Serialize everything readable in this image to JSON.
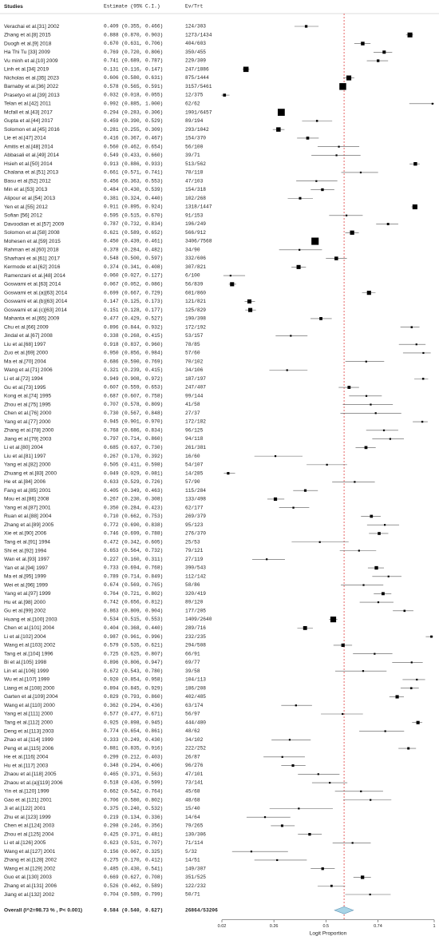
{
  "chart_data": {
    "type": "forest",
    "headers": [
      "Studies",
      "Estimate (95% C.I.)",
      "Ev/Trt"
    ],
    "xlabel": "Logit Proportion",
    "xlim": [
      0.02,
      1
    ],
    "xticks": [
      0.02,
      0.26,
      0.5,
      0.74,
      1
    ],
    "color": "#000000",
    "reference_color": "#e04040",
    "diamond_color": "#a8d4e6",
    "rows": [
      {
        "study": "Verachai et al.[31] 2002",
        "text": "0.409 (0.355, 0.466)",
        "est": 0.409,
        "lo": 0.355,
        "hi": 0.466,
        "n": "124/303"
      },
      {
        "study": "Zhang et al.[8] 2015",
        "text": "0.888 (0.870, 0.903)",
        "est": 0.888,
        "lo": 0.87,
        "hi": 0.903,
        "n": "1273/1434"
      },
      {
        "study": "Duogh et al.[9] 2018",
        "text": "0.670 (0.631, 0.706)",
        "est": 0.67,
        "lo": 0.631,
        "hi": 0.706,
        "n": "404/603"
      },
      {
        "study": "Ha Thi Tu [33] 2009",
        "text": "0.769 (0.720, 0.806)",
        "est": 0.769,
        "lo": 0.72,
        "hi": 0.806,
        "n": "350/455"
      },
      {
        "study": "Vu minh et al.[10] 2009",
        "text": "0.741 (0.689, 0.787)",
        "est": 0.741,
        "lo": 0.689,
        "hi": 0.787,
        "n": "229/309"
      },
      {
        "study": "Linh et al.[34] 2019",
        "text": "0.131 (0.116, 0.147)",
        "est": 0.131,
        "lo": 0.116,
        "hi": 0.147,
        "n": "247/1886"
      },
      {
        "study": "Nicholas et al.[35] 2023",
        "text": "0.606 (0.580, 0.631)",
        "est": 0.606,
        "lo": 0.58,
        "hi": 0.631,
        "n": "875/1444"
      },
      {
        "study": "Barnaby et al.[36] 2022",
        "text": "0.578 (0.565, 0.591)",
        "est": 0.578,
        "lo": 0.565,
        "hi": 0.591,
        "n": "3157/5461"
      },
      {
        "study": "Prasetyo et al.[39] 2013",
        "text": "0.032 (0.018, 0.055)",
        "est": 0.032,
        "lo": 0.018,
        "hi": 0.055,
        "n": "12/375"
      },
      {
        "study": "Telan et al.[42] 2011",
        "text": "0.992 (0.885, 1.000)",
        "est": 0.992,
        "lo": 0.885,
        "hi": 1.0,
        "n": "62/62"
      },
      {
        "study": "Mcfall et al.[43] 2017",
        "text": "0.294 (0.283, 0.306)",
        "est": 0.294,
        "lo": 0.283,
        "hi": 0.306,
        "n": "1901/6457"
      },
      {
        "study": "Gupta et al.[44] 2017",
        "text": "0.459 (0.390, 0.529)",
        "est": 0.459,
        "lo": 0.39,
        "hi": 0.529,
        "n": "89/194"
      },
      {
        "study": "Solomon et al.[45] 2016",
        "text": "0.281 (0.255, 0.309)",
        "est": 0.281,
        "lo": 0.255,
        "hi": 0.309,
        "n": "293/1042"
      },
      {
        "study": "Lie et al.[47] 2014",
        "text": "0.416 (0.367, 0.467)",
        "est": 0.416,
        "lo": 0.367,
        "hi": 0.467,
        "n": "154/370"
      },
      {
        "study": "Amitis et al.[48] 2014",
        "text": "0.560 (0.462, 0.654)",
        "est": 0.56,
        "lo": 0.462,
        "hi": 0.654,
        "n": "56/100"
      },
      {
        "study": "Abbasali et al.[49] 2014",
        "text": "0.549 (0.433, 0.660)",
        "est": 0.549,
        "lo": 0.433,
        "hi": 0.66,
        "n": "39/71"
      },
      {
        "study": "Hsieh et al.[50] 2014",
        "text": "0.913 (0.886, 0.933)",
        "est": 0.913,
        "lo": 0.886,
        "hi": 0.933,
        "n": "513/562"
      },
      {
        "study": "Chalana et al.[51] 2013",
        "text": "0.661 (0.571, 0.741)",
        "est": 0.661,
        "lo": 0.571,
        "hi": 0.741,
        "n": "78/118"
      },
      {
        "study": "Basu et al.[52] 2012",
        "text": "0.456 (0.363, 0.553)",
        "est": 0.456,
        "lo": 0.363,
        "hi": 0.553,
        "n": "47/103"
      },
      {
        "study": "Min et al.[53] 2013",
        "text": "0.484 (0.430, 0.539)",
        "est": 0.484,
        "lo": 0.43,
        "hi": 0.539,
        "n": "154/318"
      },
      {
        "study": "Alipour et al.[54] 2013",
        "text": "0.381 (0.324, 0.440)",
        "est": 0.381,
        "lo": 0.324,
        "hi": 0.44,
        "n": "102/268"
      },
      {
        "study": "Yen et al.[55] 2012",
        "text": "0.911 (0.895, 0.924)",
        "est": 0.911,
        "lo": 0.895,
        "hi": 0.924,
        "n": "1318/1447"
      },
      {
        "study": "Sofian [56] 2012",
        "text": "0.595 (0.515, 0.670)",
        "est": 0.595,
        "lo": 0.515,
        "hi": 0.67,
        "n": "91/153"
      },
      {
        "study": "Davoodian et al.[57] 2009",
        "text": "0.787 (0.732, 0.834)",
        "est": 0.787,
        "lo": 0.732,
        "hi": 0.834,
        "n": "196/249"
      },
      {
        "study": "Solomon et al.[58] 2008",
        "text": "0.621 (0.589, 0.652)",
        "est": 0.621,
        "lo": 0.589,
        "hi": 0.652,
        "n": "566/912"
      },
      {
        "study": "Mohesen et al.[59] 2015",
        "text": "0.450 (0.439, 0.461)",
        "est": 0.45,
        "lo": 0.439,
        "hi": 0.461,
        "n": "3406/7568"
      },
      {
        "study": "Rahman et al.[60] 2018",
        "text": "0.378 (0.284, 0.482)",
        "est": 0.378,
        "lo": 0.284,
        "hi": 0.482,
        "n": "34/90"
      },
      {
        "study": "Sharhani et al.[61] 2017",
        "text": "0.548 (0.500, 0.597)",
        "est": 0.548,
        "lo": 0.5,
        "hi": 0.597,
        "n": "332/606"
      },
      {
        "study": "Kermode et al.[62] 2016",
        "text": "0.374 (0.341, 0.408)",
        "est": 0.374,
        "lo": 0.341,
        "hi": 0.408,
        "n": "307/821"
      },
      {
        "study": "Ramenzani et al.[48] 2014",
        "text": "0.060 (0.027, 0.127)",
        "est": 0.06,
        "lo": 0.027,
        "hi": 0.127,
        "n": "6/100"
      },
      {
        "study": "Goswami et al.[63] 2014",
        "text": "0.067 (0.052, 0.086)",
        "est": 0.067,
        "lo": 0.052,
        "hi": 0.086,
        "n": "56/839"
      },
      {
        "study": "Goswami et al.(a)[63] 2014",
        "text": "0.699 (0.667, 0.729)",
        "est": 0.699,
        "lo": 0.667,
        "hi": 0.729,
        "n": "601/860"
      },
      {
        "study": "Goswami et al.(b)[63] 2014",
        "text": "0.147 (0.125, 0.173)",
        "est": 0.147,
        "lo": 0.125,
        "hi": 0.173,
        "n": "121/821"
      },
      {
        "study": "Goswami et al.(c)[63] 2014",
        "text": "0.151 (0.128, 0.177)",
        "est": 0.151,
        "lo": 0.128,
        "hi": 0.177,
        "n": "125/829"
      },
      {
        "study": "Mahanta et al.[65] 2009",
        "text": "0.477 (0.429, 0.527)",
        "est": 0.477,
        "lo": 0.429,
        "hi": 0.527,
        "n": "190/398"
      },
      {
        "study": "Chu et al.[66] 2009",
        "text": "0.896 (0.844, 0.932)",
        "est": 0.896,
        "lo": 0.844,
        "hi": 0.932,
        "n": "172/192"
      },
      {
        "study": "Jindal et al.[67] 2008",
        "text": "0.338 (0.268, 0.415)",
        "est": 0.338,
        "lo": 0.268,
        "hi": 0.415,
        "n": "53/157"
      },
      {
        "study": "Liu et al.[68] 1997",
        "text": "0.918 (0.837, 0.960)",
        "est": 0.918,
        "lo": 0.837,
        "hi": 0.96,
        "n": "78/85"
      },
      {
        "study": "Zuo et al.[69] 2000",
        "text": "0.950 (0.856, 0.984)",
        "est": 0.95,
        "lo": 0.856,
        "hi": 0.984,
        "n": "57/60"
      },
      {
        "study": "Ma et al.[70] 2004",
        "text": "0.686 (0.590, 0.769)",
        "est": 0.686,
        "lo": 0.59,
        "hi": 0.769,
        "n": "70/102"
      },
      {
        "study": "Wang et al.[71] 2006",
        "text": "0.321 (0.239, 0.415)",
        "est": 0.321,
        "lo": 0.239,
        "hi": 0.415,
        "n": "34/106"
      },
      {
        "study": "Li et al.[72] 1994",
        "text": "0.949 (0.908, 0.972)",
        "est": 0.949,
        "lo": 0.908,
        "hi": 0.972,
        "n": "187/197"
      },
      {
        "study": "Gu et al.[73] 1995",
        "text": "0.607 (0.559, 0.653)",
        "est": 0.607,
        "lo": 0.559,
        "hi": 0.653,
        "n": "247/407"
      },
      {
        "study": "Kong et al.[74] 1995",
        "text": "0.687 (0.607, 0.758)",
        "est": 0.687,
        "lo": 0.607,
        "hi": 0.758,
        "n": "99/144"
      },
      {
        "study": "Zhou et al.[75] 1995",
        "text": "0.707 (0.578, 0.809)",
        "est": 0.707,
        "lo": 0.578,
        "hi": 0.809,
        "n": "41/58"
      },
      {
        "study": "Chen et al.[76] 2000",
        "text": "0.730 (0.567, 0.848)",
        "est": 0.73,
        "lo": 0.567,
        "hi": 0.848,
        "n": "27/37"
      },
      {
        "study": "Yang et al.[77] 2000",
        "text": "0.945 (0.901, 0.970)",
        "est": 0.945,
        "lo": 0.901,
        "hi": 0.97,
        "n": "172/182"
      },
      {
        "study": "Zhang et al.[78] 2000",
        "text": "0.768 (0.686, 0.834)",
        "est": 0.768,
        "lo": 0.686,
        "hi": 0.834,
        "n": "96/125"
      },
      {
        "study": "Jiang et al.[79] 2003",
        "text": "0.797 (0.714, 0.860)",
        "est": 0.797,
        "lo": 0.714,
        "hi": 0.86,
        "n": "94/118"
      },
      {
        "study": "Li et al.[80] 2004",
        "text": "0.685 (0.637, 0.730)",
        "est": 0.685,
        "lo": 0.637,
        "hi": 0.73,
        "n": "261/381"
      },
      {
        "study": "Liu et al.[81] 1997",
        "text": "0.267 (0.170, 0.392)",
        "est": 0.267,
        "lo": 0.17,
        "hi": 0.392,
        "n": "16/60"
      },
      {
        "study": "Yang et al.[82] 2000",
        "text": "0.505 (0.411, 0.598)",
        "est": 0.505,
        "lo": 0.411,
        "hi": 0.598,
        "n": "54/107"
      },
      {
        "study": "Zhuang et al.[83] 2000",
        "text": "0.049 (0.029, 0.081)",
        "est": 0.049,
        "lo": 0.029,
        "hi": 0.081,
        "n": "14/285"
      },
      {
        "study": "He et al.[84] 2006",
        "text": "0.633 (0.529, 0.726)",
        "est": 0.633,
        "lo": 0.529,
        "hi": 0.726,
        "n": "57/90"
      },
      {
        "study": "Fang et al.[85] 2001",
        "text": "0.405 (0.349, 0.463)",
        "est": 0.405,
        "lo": 0.349,
        "hi": 0.463,
        "n": "115/284"
      },
      {
        "study": "Mou et al.[86] 2008",
        "text": "0.267 (0.230, 0.308)",
        "est": 0.267,
        "lo": 0.23,
        "hi": 0.308,
        "n": "133/498"
      },
      {
        "study": "Yang et al.[87] 2001",
        "text": "0.350 (0.284, 0.423)",
        "est": 0.35,
        "lo": 0.284,
        "hi": 0.423,
        "n": "62/177"
      },
      {
        "study": "Ruan et al.[88] 2004",
        "text": "0.710 (0.662, 0.753)",
        "est": 0.71,
        "lo": 0.662,
        "hi": 0.753,
        "n": "269/379"
      },
      {
        "study": "Zhang et al.[89] 2005",
        "text": "0.772 (0.690, 0.838)",
        "est": 0.772,
        "lo": 0.69,
        "hi": 0.838,
        "n": "95/123"
      },
      {
        "study": "Xie et al.[90] 2006",
        "text": "0.746 (0.699, 0.788)",
        "est": 0.746,
        "lo": 0.699,
        "hi": 0.788,
        "n": "276/370"
      },
      {
        "study": "Tang et al.[91] 1994",
        "text": "0.472 (0.342, 0.605)",
        "est": 0.472,
        "lo": 0.342,
        "hi": 0.605,
        "n": "25/53"
      },
      {
        "study": "Shi et al.[92] 1994",
        "text": "0.653 (0.564, 0.732)",
        "est": 0.653,
        "lo": 0.564,
        "hi": 0.732,
        "n": "79/121"
      },
      {
        "study": "Wan et al.[93] 1997",
        "text": "0.227 (0.160, 0.311)",
        "est": 0.227,
        "lo": 0.16,
        "hi": 0.311,
        "n": "27/119"
      },
      {
        "study": "Yan et al.[94] 1997",
        "text": "0.733 (0.694, 0.768)",
        "est": 0.733,
        "lo": 0.694,
        "hi": 0.768,
        "n": "390/543"
      },
      {
        "study": "Ma et al.[95] 1999",
        "text": "0.789 (0.714, 0.849)",
        "est": 0.789,
        "lo": 0.714,
        "hi": 0.849,
        "n": "112/142"
      },
      {
        "study": "Wei et al.[96] 1999",
        "text": "0.674 (0.569, 0.765)",
        "est": 0.674,
        "lo": 0.569,
        "hi": 0.765,
        "n": "58/86"
      },
      {
        "study": "Yang et al.[97] 1999",
        "text": "0.764 (0.721, 0.802)",
        "est": 0.764,
        "lo": 0.721,
        "hi": 0.802,
        "n": "320/419"
      },
      {
        "study": "Hu et al.[98] 2000",
        "text": "0.742 (0.656, 0.812)",
        "est": 0.742,
        "lo": 0.656,
        "hi": 0.812,
        "n": "89/120"
      },
      {
        "study": "Gu et al.[99] 2002",
        "text": "0.863 (0.809, 0.904)",
        "est": 0.863,
        "lo": 0.809,
        "hi": 0.904,
        "n": "177/205"
      },
      {
        "study": "Huang et al.[100] 2003",
        "text": "0.534 (0.515, 0.553)",
        "est": 0.534,
        "lo": 0.515,
        "hi": 0.553,
        "n": "1409/2640"
      },
      {
        "study": "Chen et al.[101] 2004",
        "text": "0.404 (0.368, 0.440)",
        "est": 0.404,
        "lo": 0.368,
        "hi": 0.44,
        "n": "289/716"
      },
      {
        "study": "Li et al.[102] 2004",
        "text": "0.987 (0.961, 0.996)",
        "est": 0.987,
        "lo": 0.961,
        "hi": 0.996,
        "n": "232/235"
      },
      {
        "study": "Wang et al.[103] 2002",
        "text": "0.579 (0.535, 0.621)",
        "est": 0.579,
        "lo": 0.535,
        "hi": 0.621,
        "n": "294/508"
      },
      {
        "study": "Tang et al.[104] 1996",
        "text": "0.725 (0.625, 0.807)",
        "est": 0.725,
        "lo": 0.625,
        "hi": 0.807,
        "n": "66/91"
      },
      {
        "study": "Bi et al.[105] 1998",
        "text": "0.896 (0.806, 0.947)",
        "est": 0.896,
        "lo": 0.806,
        "hi": 0.947,
        "n": "69/77"
      },
      {
        "study": "Lin et al.[106] 1999",
        "text": "0.672 (0.543, 0.780)",
        "est": 0.672,
        "lo": 0.543,
        "hi": 0.78,
        "n": "39/58"
      },
      {
        "study": "Wu et al.[107] 1999",
        "text": "0.920 (0.854, 0.958)",
        "est": 0.92,
        "lo": 0.854,
        "hi": 0.958,
        "n": "104/113"
      },
      {
        "study": "Liang et al.[108] 2000",
        "text": "0.894 (0.845, 0.929)",
        "est": 0.894,
        "lo": 0.845,
        "hi": 0.929,
        "n": "186/208"
      },
      {
        "study": "Garten et al.[109] 2004",
        "text": "0.829 (0.793, 0.860)",
        "est": 0.829,
        "lo": 0.793,
        "hi": 0.86,
        "n": "402/485"
      },
      {
        "study": "Wang et al.[110] 2000",
        "text": "0.362 (0.294, 0.436)",
        "est": 0.362,
        "lo": 0.294,
        "hi": 0.436,
        "n": "63/174"
      },
      {
        "study": "Yang et al.[111] 2000",
        "text": "0.577 (0.477, 0.671)",
        "est": 0.577,
        "lo": 0.477,
        "hi": 0.671,
        "n": "56/97"
      },
      {
        "study": "Tang et al.[112] 2000",
        "text": "0.925 (0.898, 0.945)",
        "est": 0.925,
        "lo": 0.898,
        "hi": 0.945,
        "n": "444/480"
      },
      {
        "study": "Deng et al.[113] 2003",
        "text": "0.774 (0.654, 0.861)",
        "est": 0.774,
        "lo": 0.654,
        "hi": 0.861,
        "n": "48/62"
      },
      {
        "study": "Zhao et al.[114] 1999",
        "text": "0.333 (0.249, 0.430)",
        "est": 0.333,
        "lo": 0.249,
        "hi": 0.43,
        "n": "34/102"
      },
      {
        "study": "Peng et al.[115] 2006",
        "text": "0.881 (0.835, 0.916)",
        "est": 0.881,
        "lo": 0.835,
        "hi": 0.916,
        "n": "222/252"
      },
      {
        "study": "He et al.[116] 2004",
        "text": "0.299 (0.212, 0.403)",
        "est": 0.299,
        "lo": 0.212,
        "hi": 0.403,
        "n": "26/87"
      },
      {
        "study": "Hu et al.[117] 2003",
        "text": "0.348 (0.294, 0.406)",
        "est": 0.348,
        "lo": 0.294,
        "hi": 0.406,
        "n": "96/276"
      },
      {
        "study": "Zhaou et al.[118] 2005",
        "text": "0.465 (0.371, 0.563)",
        "est": 0.465,
        "lo": 0.371,
        "hi": 0.563,
        "n": "47/101"
      },
      {
        "study": "Zhaou et al.(a)[119] 2006",
        "text": "0.518 (0.436, 0.599)",
        "est": 0.518,
        "lo": 0.436,
        "hi": 0.599,
        "n": "73/141"
      },
      {
        "study": "Yin et al.[120] 1999",
        "text": "0.662 (0.542, 0.764)",
        "est": 0.662,
        "lo": 0.542,
        "hi": 0.764,
        "n": "45/68"
      },
      {
        "study": "Gao et al.[121] 2001",
        "text": "0.706 (0.580, 0.802)",
        "est": 0.706,
        "lo": 0.58,
        "hi": 0.802,
        "n": "48/68"
      },
      {
        "study": "Ji et al.[122] 2001",
        "text": "0.375 (0.240, 0.532)",
        "est": 0.375,
        "lo": 0.24,
        "hi": 0.532,
        "n": "15/40"
      },
      {
        "study": "Zhu et al.[123] 1999",
        "text": "0.219 (0.134, 0.336)",
        "est": 0.219,
        "lo": 0.134,
        "hi": 0.336,
        "n": "14/64"
      },
      {
        "study": "Chen et al.[124] 2003",
        "text": "0.298 (0.246, 0.356)",
        "est": 0.298,
        "lo": 0.246,
        "hi": 0.356,
        "n": "79/265"
      },
      {
        "study": "Zhou et al.[125] 2004",
        "text": "0.425 (0.371, 0.481)",
        "est": 0.425,
        "lo": 0.371,
        "hi": 0.481,
        "n": "130/306"
      },
      {
        "study": "Li et al.[126] 2005",
        "text": "0.623 (0.531, 0.707)",
        "est": 0.623,
        "lo": 0.531,
        "hi": 0.707,
        "n": "71/114"
      },
      {
        "study": "Wang et al.[127] 2001",
        "text": "0.156 (0.067, 0.325)",
        "est": 0.156,
        "lo": 0.067,
        "hi": 0.325,
        "n": "5/32"
      },
      {
        "study": "Zhang et al.[128] 2002",
        "text": "0.275 (0.170, 0.412)",
        "est": 0.275,
        "lo": 0.17,
        "hi": 0.412,
        "n": "14/51"
      },
      {
        "study": "Wang et al.[129] 2002",
        "text": "0.485 (0.430, 0.541)",
        "est": 0.485,
        "lo": 0.43,
        "hi": 0.541,
        "n": "149/307"
      },
      {
        "study": "Guo et al.[130] 2003",
        "text": "0.669 (0.627, 0.708)",
        "est": 0.669,
        "lo": 0.627,
        "hi": 0.708,
        "n": "351/525"
      },
      {
        "study": "Zhang et al.[131] 2006",
        "text": "0.526 (0.462, 0.589)",
        "est": 0.526,
        "lo": 0.462,
        "hi": 0.589,
        "n": "122/232"
      },
      {
        "study": "Jiang et al.[132] 2002",
        "text": "0.704 (0.589, 0.799)",
        "est": 0.704,
        "lo": 0.589,
        "hi": 0.799,
        "n": "50/71"
      }
    ],
    "overall": {
      "study": "Overall (I^2=98.73 % , P< 0.001)",
      "text": "0.584 (0.540, 0.627)",
      "est": 0.584,
      "lo": 0.54,
      "hi": 0.627,
      "n": "26864/53206"
    }
  }
}
